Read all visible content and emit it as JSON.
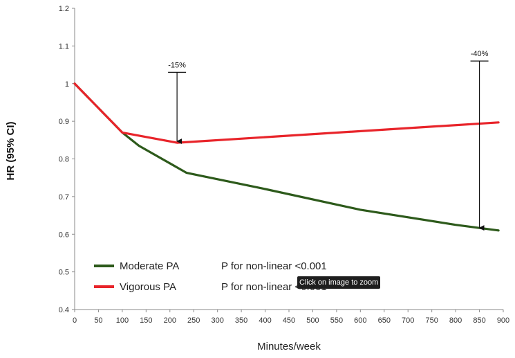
{
  "chart_data": {
    "type": "line",
    "xlabel": "Minutes/week",
    "ylabel": "HR (95% CI)",
    "xlim": [
      0,
      900
    ],
    "ylim": [
      0.4,
      1.2
    ],
    "x_ticks": [
      0,
      50,
      100,
      150,
      200,
      250,
      300,
      350,
      400,
      450,
      500,
      550,
      600,
      650,
      700,
      750,
      800,
      850,
      900
    ],
    "y_ticks": [
      "0.4",
      "0.5",
      "0.6",
      "0.7",
      "0.8",
      "0.9",
      "1",
      "1.1",
      "1.2"
    ],
    "grid": false,
    "legend_position": "bottom-left",
    "series": [
      {
        "name": "Moderate PA",
        "color": "#2d5a1b",
        "note": "P for non-linear <0.001",
        "x": [
          0,
          100,
          135,
          235,
          400,
          600,
          800,
          890
        ],
        "y": [
          1.0,
          0.87,
          0.835,
          0.763,
          0.72,
          0.665,
          0.625,
          0.61
        ]
      },
      {
        "name": "Vigorous PA",
        "color": "#e8242a",
        "note": "P for non-linear <0.001",
        "x": [
          0,
          100,
          215,
          890
        ],
        "y": [
          1.0,
          0.87,
          0.843,
          0.897
        ]
      }
    ],
    "annotations": [
      {
        "text": "-15%",
        "x": 215,
        "y_top": 1.03,
        "y_bottom": 0.845
      },
      {
        "text": "-40%",
        "x": 850,
        "y_top": 1.06,
        "y_bottom": 0.615
      }
    ]
  },
  "overlay": {
    "tooltip": "Click on image to zoom"
  }
}
